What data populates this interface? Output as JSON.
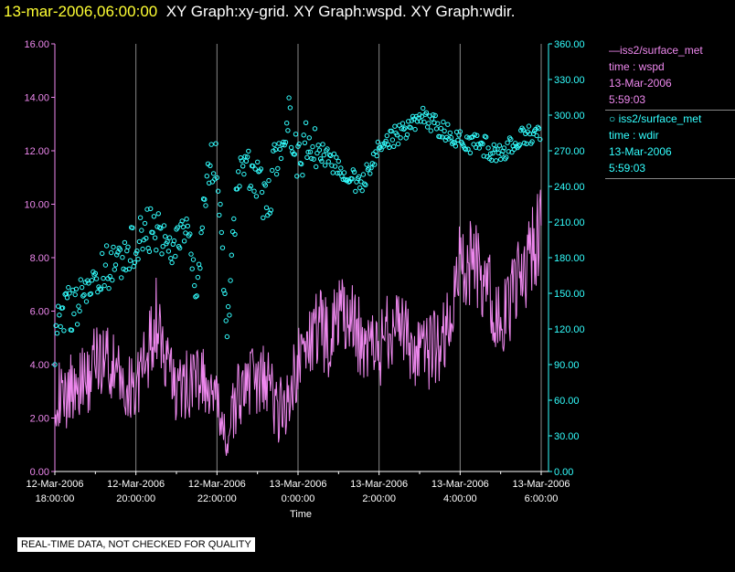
{
  "header": {
    "timestamp": "13-mar-2006,06:00:00",
    "graphs": "XY Graph:xy-grid.  XY Graph:wspd.  XY Graph:wdir."
  },
  "legend": {
    "wspd": {
      "source": "iss2/surface_met",
      "field": "time : wspd",
      "date": "13-Mar-2006",
      "time": "5:59:03"
    },
    "wdir": {
      "source": "iss2/surface_met",
      "field": "time : wdir",
      "date": "13-Mar-2006",
      "time": "5:59:03"
    }
  },
  "quality_note": "REAL-TIME DATA, NOT CHECKED FOR QUALITY",
  "colors": {
    "wspd": "#ee88ee",
    "wdir": "#33ffff",
    "grid": "#888888",
    "timestamp": "#ffff33"
  },
  "chart_data": {
    "type": "line",
    "xlabel": "Time",
    "x_range_hours": [
      0,
      12
    ],
    "x_ticks": [
      {
        "hour": 0,
        "date": "12-Mar-2006",
        "time": "18:00:00"
      },
      {
        "hour": 2,
        "date": "12-Mar-2006",
        "time": "20:00:00"
      },
      {
        "hour": 4,
        "date": "12-Mar-2006",
        "time": "22:00:00"
      },
      {
        "hour": 6,
        "date": "13-Mar-2006",
        "time": "0:00:00"
      },
      {
        "hour": 8,
        "date": "13-Mar-2006",
        "time": "2:00:00"
      },
      {
        "hour": 10,
        "date": "13-Mar-2006",
        "time": "4:00:00"
      },
      {
        "hour": 12,
        "date": "13-Mar-2006",
        "time": "6:00:00"
      }
    ],
    "y_left": {
      "label": "wspd",
      "range": [
        0,
        16
      ],
      "ticks": [
        "0.00",
        "2.00",
        "4.00",
        "6.00",
        "8.00",
        "10.00",
        "12.00",
        "14.00",
        "16.00"
      ]
    },
    "y_right": {
      "label": "wdir",
      "range": [
        0,
        360
      ],
      "ticks": [
        "0.00",
        "30.00",
        "60.00",
        "90.00",
        "120.00",
        "150.00",
        "180.00",
        "210.00",
        "240.00",
        "270.00",
        "300.00",
        "330.00",
        "360.00"
      ]
    },
    "series": [
      {
        "name": "wspd",
        "style": "line",
        "axis": "left",
        "hours": [
          0,
          0.25,
          0.5,
          0.75,
          1,
          1.25,
          1.5,
          1.75,
          2,
          2.25,
          2.5,
          2.75,
          3,
          3.25,
          3.5,
          3.75,
          4,
          4.25,
          4.5,
          4.75,
          5,
          5.25,
          5.5,
          5.75,
          6,
          6.25,
          6.5,
          6.75,
          7,
          7.25,
          7.5,
          7.75,
          8,
          8.25,
          8.5,
          8.75,
          9,
          9.25,
          9.5,
          9.75,
          10,
          10.25,
          10.5,
          10.75,
          11,
          11.25,
          11.5,
          11.75,
          12
        ],
        "values": [
          3.0,
          2.6,
          3.5,
          3.2,
          4.1,
          4.4,
          3.6,
          3.0,
          3.4,
          4.0,
          5.8,
          4.0,
          3.0,
          3.2,
          3.6,
          3.1,
          2.3,
          1.2,
          2.7,
          3.5,
          3.1,
          3.6,
          2.2,
          2.8,
          4.1,
          4.8,
          5.4,
          5.0,
          5.9,
          5.7,
          5.1,
          4.7,
          4.4,
          5.4,
          5.8,
          4.6,
          4.2,
          4.5,
          4.8,
          5.4,
          7.8,
          7.9,
          7.3,
          6.6,
          5.2,
          6.4,
          7.3,
          8.1,
          9.2
        ]
      },
      {
        "name": "wdir",
        "style": "markers",
        "axis": "right",
        "hours": [
          0,
          0.25,
          0.5,
          0.75,
          1,
          1.25,
          1.5,
          1.75,
          2,
          2.25,
          2.5,
          2.75,
          3,
          3.25,
          3.5,
          3.75,
          4,
          4.25,
          4.5,
          4.75,
          5,
          5.25,
          5.5,
          5.75,
          6,
          6.25,
          6.5,
          6.75,
          7,
          7.25,
          7.5,
          7.75,
          8,
          8.25,
          8.5,
          8.75,
          9,
          9.25,
          9.5,
          9.75,
          10,
          10.25,
          10.5,
          10.75,
          11,
          11.25,
          11.5,
          11.75,
          12
        ],
        "values": [
          110,
          140,
          135,
          150,
          160,
          170,
          180,
          185,
          190,
          205,
          200,
          195,
          195,
          200,
          150,
          250,
          265,
          120,
          240,
          260,
          250,
          220,
          275,
          300,
          255,
          280,
          270,
          265,
          255,
          250,
          240,
          255,
          270,
          280,
          285,
          290,
          300,
          295,
          290,
          285,
          278,
          275,
          276,
          270,
          268,
          273,
          282,
          285,
          280
        ]
      }
    ]
  }
}
